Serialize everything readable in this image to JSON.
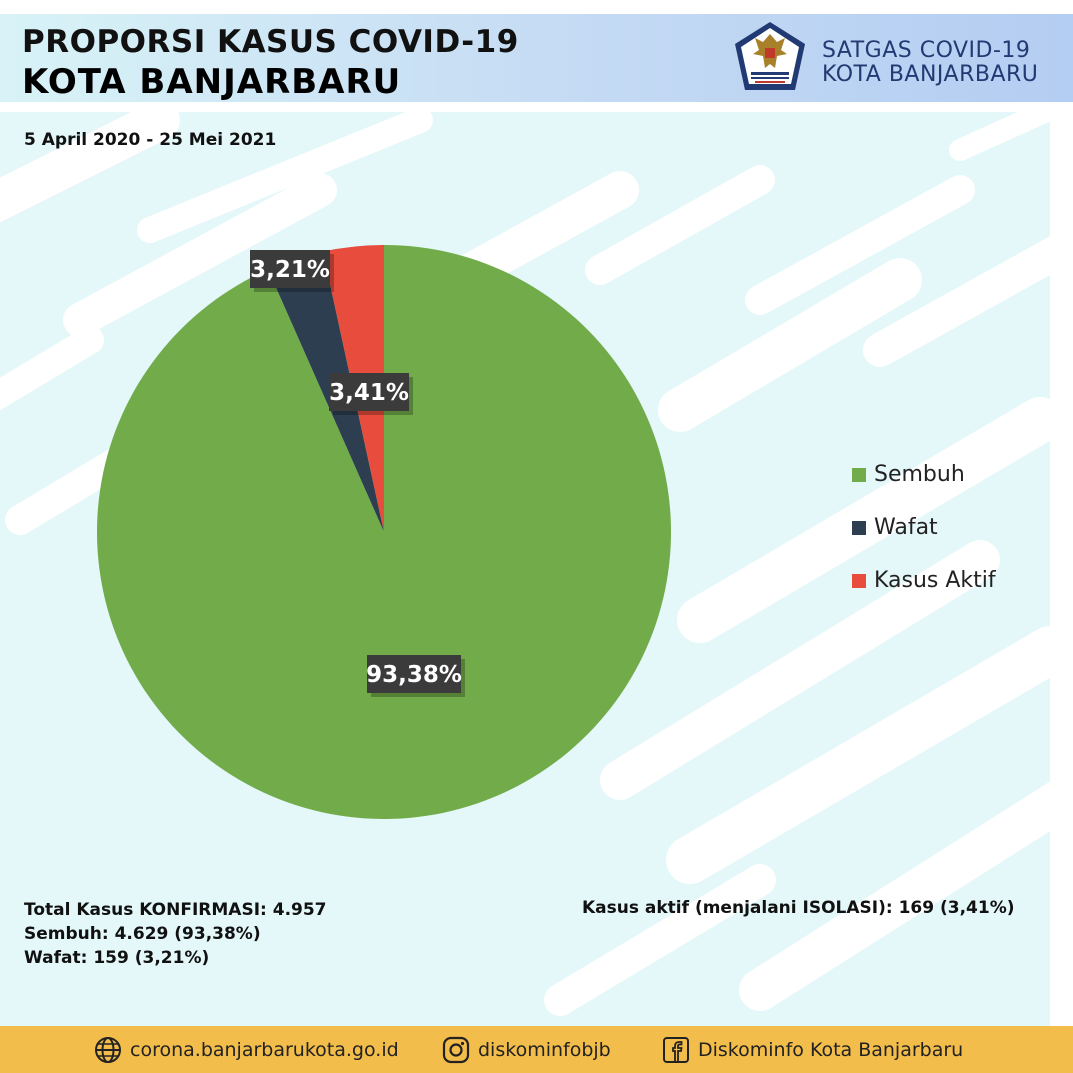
{
  "header": {
    "title_line1": "PROPORSI KASUS COVID-19",
    "title_line2": "KOTA BANJARBARU",
    "org_line1": "SATGAS COVID-19",
    "org_line2": "KOTA BANJARBARU"
  },
  "date_range": "5 April 2020 - 25 Mei 2021",
  "colors": {
    "sembuh": "#72ac4a",
    "wafat": "#2c3e50",
    "aktif": "#e74c3c",
    "label_bg": "#3b3b3b",
    "footer": "#f2bd4a",
    "header_blue": "#223a73"
  },
  "chart_data": {
    "type": "pie",
    "title": "",
    "series": [
      {
        "name": "Sembuh",
        "value": 93.38,
        "label": "93,38%",
        "color": "#72ac4a"
      },
      {
        "name": "Wafat",
        "value": 3.21,
        "label": "3,21%",
        "color": "#2c3e50"
      },
      {
        "name": "Kasus Aktif",
        "value": 3.41,
        "label": "3,41%",
        "color": "#e74c3c"
      }
    ],
    "legend_position": "right"
  },
  "stats": {
    "total": "Total Kasus KONFIRMASI: 4.957",
    "sembuh": "Sembuh: 4.629 (93,38%)",
    "wafat": "Wafat: 159 (3,21%)",
    "aktif": "Kasus aktif (menjalani ISOLASI): 169 (3,41%)"
  },
  "footer": {
    "website": "corona.banjarbarukota.go.id",
    "instagram": "diskominfobjb",
    "facebook": "Diskominfo Kota Banjarbaru",
    "icons": [
      "globe-icon",
      "instagram-icon",
      "facebook-icon"
    ]
  }
}
